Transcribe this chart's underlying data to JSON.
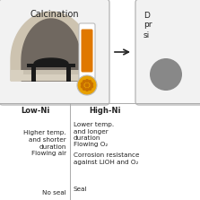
{
  "title": "Calcination",
  "bg_color": "#ffffff",
  "box1_facecolor": "#f2f2f2",
  "box1_edgecolor": "#bbbbbb",
  "furnace_outer_color": "#cdc3b0",
  "furnace_mid_color": "#9e9080",
  "furnace_inner_color": "#706860",
  "furnace_floor_color": "#d8d0c0",
  "shelf_color": "#1a1a1a",
  "item_color": "#1a1a1a",
  "therm_body_color": "#ffffff",
  "therm_tube_color": "#e07800",
  "therm_bulb_color": "#e8a000",
  "therm_border_color": "#bbbbbb",
  "arrow_color": "#222222",
  "text_color": "#222222",
  "divider_color": "#aaaaaa",
  "right_box_facecolor": "#f2f2f2",
  "right_box_edgecolor": "#bbbbbb",
  "gray_circle_color": "#888888",
  "col_left_header": "Low-Ni",
  "col_right_header": "High-Ni",
  "left_items": [
    "Higher temp.\nand shorter\nduration",
    "Flowing air",
    "No seal"
  ],
  "right_items": [
    "Lower temp.\nand longer\nduration",
    "Flowing O₂",
    "Corrosion resistance\nagainst LiOH and O₂",
    "Seal"
  ],
  "title_fontsize": 7.0,
  "header_fontsize": 6.0,
  "item_fontsize": 5.2,
  "right_box_text": [
    "D",
    "pr",
    "si"
  ]
}
